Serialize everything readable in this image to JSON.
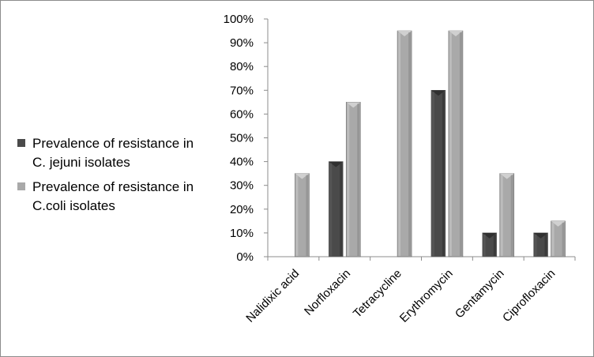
{
  "chart_data": {
    "type": "bar",
    "categories": [
      "Nalidixic acid",
      "Norfloxacin",
      "Tetracycline",
      "Erythromycin",
      "Gentamycin",
      "Ciprofloxacin"
    ],
    "series": [
      {
        "name": "Prevalence of resistance in C. jejuni isolates",
        "values": [
          0,
          40,
          0,
          70,
          10,
          10
        ],
        "color": "#4a4a4a"
      },
      {
        "name": "Prevalence of resistance in C.coli isolates",
        "values": [
          35,
          65,
          95,
          95,
          35,
          15
        ],
        "color": "#a9a9a9"
      }
    ],
    "title": "",
    "xlabel": "",
    "ylabel": "",
    "ylim": [
      0,
      100
    ],
    "yticks": [
      "0%",
      "10%",
      "20%",
      "30%",
      "40%",
      "50%",
      "60%",
      "70%",
      "80%",
      "90%",
      "100%"
    ],
    "grid": false,
    "legend_position": "left"
  }
}
